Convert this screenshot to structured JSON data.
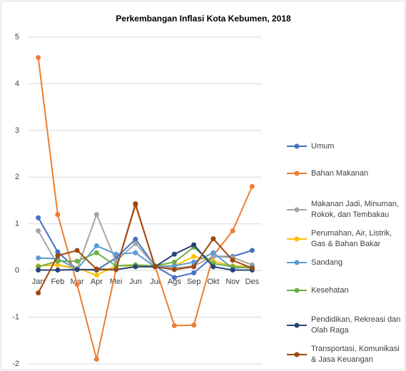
{
  "chart_data": {
    "type": "line",
    "title": "Perkembangan Inflasi Kota Kebumen, 2018",
    "categories": [
      "Jan",
      "Feb",
      "Mar",
      "Apr",
      "Mei",
      "Jun",
      "Jul",
      "Ags",
      "Sep",
      "Okt",
      "Nov",
      "Des"
    ],
    "ylim": [
      -2,
      5
    ],
    "yticks": [
      -2,
      -1,
      0,
      1,
      2,
      3,
      4,
      5
    ],
    "grid": true,
    "series": [
      {
        "name": "Umum",
        "color": "#4472c4",
        "values": [
          1.13,
          0.4,
          0.02,
          0.01,
          0.27,
          0.67,
          0.1,
          -0.15,
          -0.05,
          0.3,
          0.3,
          0.43
        ]
      },
      {
        "name": "Bahan Makanan",
        "color": "#ed7d31",
        "values": [
          4.56,
          1.2,
          -0.3,
          -1.9,
          0.03,
          1.4,
          0.1,
          -1.18,
          -1.17,
          0.32,
          0.85,
          1.8
        ]
      },
      {
        "name": "Makanan Jadi, Minuman, Rokok, dan Tembakau",
        "color": "#a5a5a5",
        "values": [
          0.85,
          0.12,
          0.03,
          1.2,
          0.2,
          0.58,
          0.1,
          0.05,
          0.1,
          0.3,
          0.28,
          0.12
        ]
      },
      {
        "name": "Perumahan, Air, Listrik, Gas & Bahan Bakar",
        "color": "#ffc000",
        "values": [
          0.1,
          0.12,
          0.05,
          -0.1,
          0.1,
          0.1,
          0.1,
          0.1,
          0.3,
          0.2,
          0.1,
          0.08
        ]
      },
      {
        "name": "Sandang",
        "color": "#5b9bd5",
        "values": [
          0.27,
          0.25,
          0.03,
          0.53,
          0.35,
          0.38,
          0.08,
          0.1,
          0.18,
          0.38,
          0.05,
          0.08
        ]
      },
      {
        "name": "Kesehatan",
        "color": "#70ad47",
        "values": [
          0.08,
          0.2,
          0.2,
          0.38,
          0.1,
          0.12,
          0.1,
          0.18,
          0.5,
          0.15,
          0.08,
          0.05
        ]
      },
      {
        "name": "Pendidikan, Rekreasi dan Olah Raga",
        "color": "#264478",
        "values": [
          0.01,
          0.01,
          0.02,
          0.02,
          0.02,
          0.08,
          0.08,
          0.35,
          0.55,
          0.08,
          0.01,
          0.01
        ]
      },
      {
        "name": "Transportasi, Komunikasi & Jasa Keuangan",
        "color": "#9e480e",
        "values": [
          -0.48,
          0.32,
          0.43,
          0.03,
          0.02,
          1.43,
          0.08,
          0.02,
          0.08,
          0.68,
          0.22,
          0.05
        ]
      }
    ]
  }
}
